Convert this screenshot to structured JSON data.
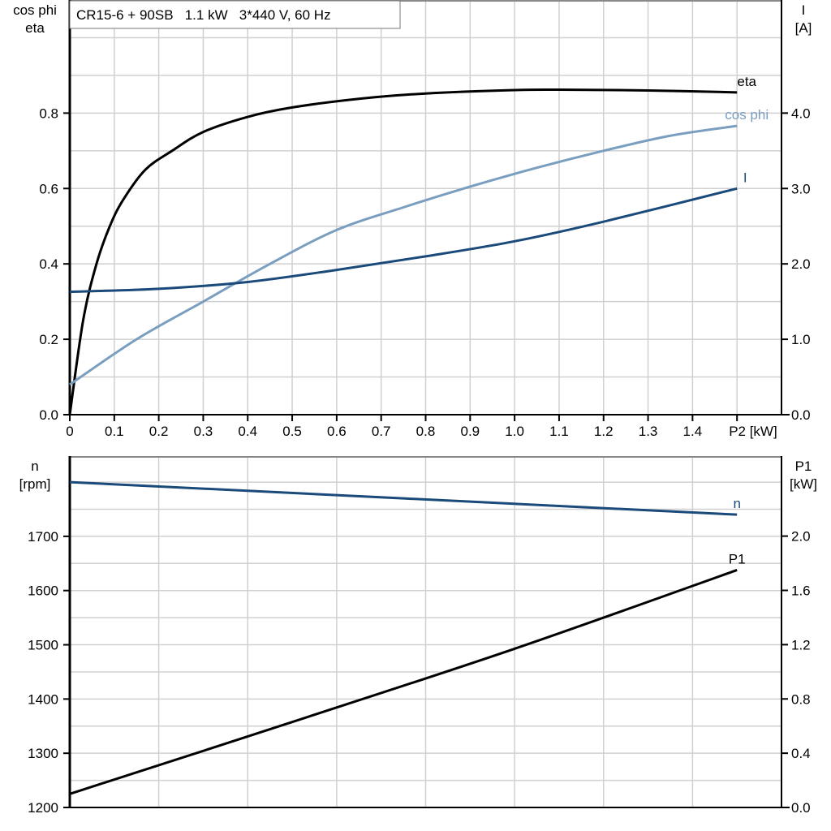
{
  "chart_data": [
    {
      "type": "line",
      "title": "CR15-6 + 90SB   1.1 kW   3*440 V, 60 Hz",
      "xlabel": "P2 [kW]",
      "ylabel_left": [
        "cos phi",
        "eta"
      ],
      "ylabel_right": [
        "I",
        "[A]"
      ],
      "xlim": [
        0,
        1.6
      ],
      "ylim_left": [
        0,
        1.1
      ],
      "ylim_right": [
        0,
        5.5
      ],
      "x_ticks": [
        "0",
        "0.1",
        "0.2",
        "0.3",
        "0.4",
        "0.5",
        "0.6",
        "0.7",
        "0.8",
        "0.9",
        "1.0",
        "1.1",
        "1.2",
        "1.3",
        "1.4"
      ],
      "y_ticks_left": [
        "0.0",
        "0.2",
        "0.4",
        "0.6",
        "0.8"
      ],
      "y_ticks_right": [
        "0.0",
        "1.0",
        "2.0",
        "3.0",
        "4.0"
      ],
      "grid": true,
      "series": [
        {
          "name": "eta",
          "axis": "left",
          "color": "#000000",
          "x": [
            0,
            0.03,
            0.06,
            0.09,
            0.12,
            0.17,
            0.23,
            0.3,
            0.4,
            0.5,
            0.65,
            0.8,
            1.0,
            1.1,
            1.3,
            1.5
          ],
          "y": [
            0,
            0.25,
            0.4,
            0.5,
            0.57,
            0.65,
            0.7,
            0.75,
            0.79,
            0.815,
            0.838,
            0.852,
            0.861,
            0.862,
            0.86,
            0.855
          ]
        },
        {
          "name": "cos phi",
          "axis": "left",
          "color": "#7a9ebf",
          "x": [
            0,
            0.15,
            0.3,
            0.45,
            0.6,
            0.75,
            0.9,
            1.05,
            1.2,
            1.35,
            1.5
          ],
          "y": [
            0.08,
            0.2,
            0.3,
            0.4,
            0.49,
            0.55,
            0.605,
            0.655,
            0.7,
            0.74,
            0.766
          ]
        },
        {
          "name": "I",
          "axis": "right",
          "color": "#1a4a7a",
          "x": [
            0,
            0.2,
            0.4,
            0.6,
            0.8,
            1.0,
            1.2,
            1.5
          ],
          "y": [
            1.63,
            1.67,
            1.76,
            1.92,
            2.1,
            2.3,
            2.56,
            3.0
          ]
        }
      ]
    },
    {
      "type": "line",
      "xlim": [
        0,
        1.6
      ],
      "ylabel_left": [
        "n",
        "[rpm]"
      ],
      "ylabel_right": [
        "P1",
        "[kW]"
      ],
      "ylim_left": [
        1200,
        1848
      ],
      "ylim_right": [
        0,
        2.59
      ],
      "y_ticks_left": [
        "1200",
        "1300",
        "1400",
        "1500",
        "1600",
        "1700"
      ],
      "y_ticks_right": [
        "0.0",
        "0.4",
        "0.8",
        "1.2",
        "1.6",
        "2.0"
      ],
      "grid": true,
      "series": [
        {
          "name": "n",
          "axis": "left",
          "color": "#1a4a7a",
          "x": [
            0,
            1.5
          ],
          "y": [
            1800,
            1740
          ]
        },
        {
          "name": "P1",
          "axis": "right",
          "color": "#000000",
          "x": [
            0,
            0.5,
            1.0,
            1.5
          ],
          "y": [
            0.1,
            0.63,
            1.17,
            1.75
          ]
        }
      ]
    }
  ]
}
